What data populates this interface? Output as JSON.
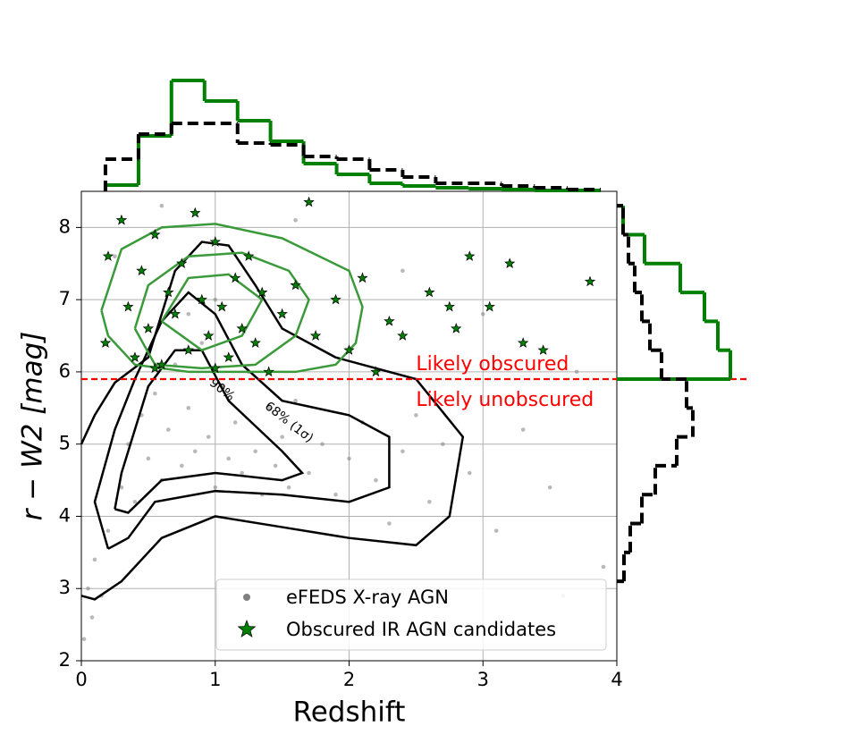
{
  "chart_data": [
    {
      "type": "scatter",
      "xlabel": "Redshift",
      "ylabel": "r − W2 [mag]",
      "xlim": [
        0,
        4
      ],
      "ylim": [
        2,
        8.5
      ],
      "xticks": [
        0,
        1,
        2,
        3,
        4
      ],
      "yticks": [
        2,
        3,
        4,
        5,
        6,
        7,
        8
      ],
      "grid": true,
      "legend": "lower right",
      "series": [
        {
          "name": "eFEDS X-ray AGN",
          "color": "#808080",
          "marker": "circle",
          "x": [
            0.05,
            0.1,
            0.15,
            0.2,
            0.3,
            0.35,
            0.4,
            0.45,
            0.5,
            0.55,
            0.6,
            0.65,
            0.7,
            0.75,
            0.8,
            0.85,
            0.9,
            0.95,
            1.0,
            1.05,
            1.1,
            1.15,
            1.2,
            1.25,
            1.3,
            1.35,
            1.4,
            1.45,
            1.5,
            1.55,
            1.6,
            1.7,
            1.8,
            1.9,
            2.0,
            2.1,
            2.2,
            2.3,
            2.4,
            2.5,
            2.6,
            2.7,
            2.9,
            3.1,
            3.3,
            3.5,
            3.7,
            0.25,
            0.6,
            1.6,
            2.4,
            3.0,
            0.02,
            0.08,
            3.9,
            3.6,
            1.0,
            0.8
          ],
          "y": [
            3.0,
            3.4,
            2.9,
            3.8,
            4.4,
            5.0,
            4.2,
            5.4,
            4.8,
            5.7,
            4.5,
            5.2,
            6.1,
            4.7,
            5.5,
            4.9,
            6.4,
            5.1,
            4.4,
            5.8,
            4.8,
            5.3,
            4.6,
            6.0,
            4.9,
            4.3,
            5.5,
            4.7,
            5.1,
            4.4,
            5.6,
            4.6,
            5.0,
            4.3,
            4.8,
            5.3,
            4.5,
            3.9,
            4.9,
            5.4,
            4.2,
            5.0,
            4.6,
            3.8,
            5.2,
            4.4,
            6.0,
            7.6,
            8.3,
            8.1,
            7.4,
            6.8,
            2.3,
            2.6,
            3.3,
            2.9,
            7.0,
            6.8
          ]
        },
        {
          "name": "Obscured IR AGN candidates",
          "color": "#008000",
          "marker": "star",
          "x": [
            0.18,
            0.2,
            0.3,
            0.35,
            0.4,
            0.45,
            0.5,
            0.55,
            0.6,
            0.65,
            0.7,
            0.75,
            0.8,
            0.85,
            0.9,
            0.95,
            1.0,
            1.05,
            1.1,
            1.15,
            1.2,
            1.25,
            1.3,
            1.35,
            1.4,
            1.5,
            1.6,
            1.7,
            1.75,
            1.9,
            2.0,
            2.1,
            2.2,
            2.3,
            2.4,
            2.6,
            2.75,
            2.8,
            2.9,
            3.05,
            3.2,
            3.3,
            3.45,
            3.8,
            0.55,
            1.0
          ],
          "y": [
            6.4,
            7.6,
            8.1,
            6.9,
            6.2,
            7.4,
            6.6,
            7.9,
            6.1,
            7.1,
            6.8,
            7.5,
            6.3,
            8.2,
            7.0,
            6.5,
            7.8,
            6.9,
            6.2,
            7.3,
            6.6,
            7.6,
            6.4,
            7.1,
            6.0,
            6.8,
            7.2,
            8.35,
            6.5,
            7.0,
            6.3,
            7.3,
            6.0,
            6.7,
            6.5,
            7.1,
            6.9,
            6.6,
            7.6,
            6.9,
            7.5,
            6.4,
            6.3,
            7.25,
            6.05,
            6.05
          ]
        }
      ],
      "contours": [
        {
          "color": "#000000",
          "x": [
            0.0,
            0.1,
            0.25,
            0.5,
            0.7,
            0.9,
            1.1,
            1.3,
            1.5,
            1.9,
            2.5,
            2.85,
            2.75,
            2.5,
            2.0,
            1.5,
            1.0,
            0.6,
            0.3,
            0.1,
            0.0
          ],
          "y": [
            5.0,
            5.4,
            5.85,
            6.2,
            7.4,
            7.8,
            7.75,
            7.2,
            6.6,
            6.2,
            5.9,
            5.1,
            4.0,
            3.6,
            3.7,
            3.85,
            4.0,
            3.7,
            3.1,
            2.85,
            2.9
          ]
        },
        {
          "color": "#000000",
          "x": [
            0.2,
            0.1,
            0.25,
            0.4,
            0.6,
            0.8,
            1.0,
            1.2,
            1.5,
            2.0,
            2.3,
            2.3,
            2.0,
            1.5,
            1.0,
            0.55,
            0.35,
            0.2
          ],
          "y": [
            3.55,
            4.2,
            5.2,
            5.9,
            6.7,
            7.1,
            6.8,
            6.1,
            5.6,
            5.4,
            5.1,
            4.4,
            4.2,
            4.3,
            4.35,
            4.2,
            3.7,
            3.55
          ]
        },
        {
          "color": "#000000",
          "x": [
            0.25,
            0.3,
            0.5,
            0.7,
            0.9,
            1.1,
            1.5,
            1.65,
            1.5,
            1.0,
            0.6,
            0.35,
            0.25
          ],
          "y": [
            4.1,
            4.6,
            5.8,
            6.3,
            6.3,
            5.6,
            4.9,
            4.6,
            4.5,
            4.6,
            4.5,
            4.05,
            4.1
          ]
        },
        {
          "color": "#3a9a3a",
          "x": [
            0.15,
            0.3,
            0.6,
            1.0,
            1.5,
            2.0,
            2.1,
            2.05,
            1.9,
            1.6,
            1.2,
            0.8,
            0.4,
            0.2,
            0.15
          ],
          "y": [
            6.85,
            7.7,
            8.0,
            8.05,
            7.85,
            7.4,
            6.9,
            6.4,
            6.1,
            6.0,
            6.0,
            6.0,
            6.1,
            6.5,
            6.85
          ]
        },
        {
          "color": "#3a9a3a",
          "x": [
            0.4,
            0.5,
            0.8,
            1.2,
            1.55,
            1.7,
            1.6,
            1.3,
            0.9,
            0.55,
            0.4
          ],
          "y": [
            6.6,
            7.2,
            7.6,
            7.65,
            7.4,
            7.0,
            6.5,
            6.1,
            6.05,
            6.1,
            6.6
          ]
        },
        {
          "color": "#3a9a3a",
          "x": [
            0.6,
            0.8,
            1.1,
            1.35,
            1.2,
            0.9,
            0.6
          ],
          "y": [
            6.7,
            7.3,
            7.35,
            7.0,
            6.5,
            6.3,
            6.7
          ]
        }
      ],
      "contour_labels": [
        {
          "text": "68% (1σ)",
          "x": 1.55,
          "y": 5.3
        },
        {
          "text": "90%",
          "x": 1.05,
          "y": 5.75
        }
      ],
      "threshold": {
        "y": 5.9,
        "color": "#ff0000"
      },
      "annotations": [
        {
          "text": "Likely obscured",
          "x": 2.5,
          "y": 6.1
        },
        {
          "text": "Likely unobscured",
          "x": 2.5,
          "y": 5.6
        }
      ]
    },
    {
      "type": "histogram",
      "orientation": "vertical",
      "ylim": [
        0,
        130
      ],
      "bins": [
        0.18,
        0.427,
        0.673,
        0.92,
        1.167,
        1.413,
        1.66,
        1.907,
        2.153,
        2.4,
        2.647,
        2.893,
        3.14,
        3.387,
        3.633,
        3.88
      ],
      "series": [
        {
          "color": "#008000",
          "style": "solid",
          "values": [
            7,
            62,
            124,
            101,
            79,
            56,
            31,
            19,
            9,
            6,
            4,
            3,
            2,
            1,
            1
          ]
        },
        {
          "color": "#000000",
          "style": "dashed",
          "values": [
            36,
            64,
            76,
            76,
            54,
            52,
            39,
            36,
            24,
            16,
            9,
            9,
            6,
            4,
            2
          ]
        }
      ]
    },
    {
      "type": "histogram",
      "orientation": "horizontal",
      "xlim": [
        0,
        130
      ],
      "series": [
        {
          "color": "#008000",
          "style": "solid",
          "bins": [
            5.9,
            6.3,
            6.7,
            7.1,
            7.5,
            7.9,
            8.3
          ],
          "values": [
            127,
            113,
            98,
            71,
            31,
            7
          ]
        },
        {
          "color": "#000000",
          "style": "dashed",
          "bins": [
            3.1,
            3.5,
            3.9,
            4.3,
            4.7,
            5.1,
            5.5,
            5.9,
            6.3,
            6.7,
            7.1,
            7.5,
            7.9,
            8.3
          ],
          "values": [
            8,
            15,
            28,
            43,
            67,
            85,
            78,
            50,
            37,
            28,
            20,
            13,
            7
          ]
        }
      ]
    }
  ]
}
